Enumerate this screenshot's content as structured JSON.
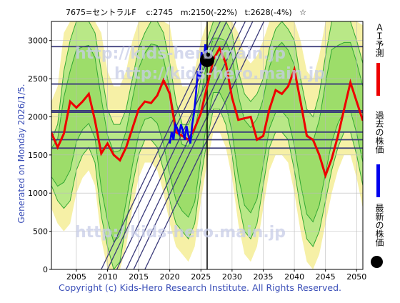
{
  "header": {
    "title": "7675=セントラルF    c:2745   m:2150(-22%)   t:2628(-4%)   ☆"
  },
  "side_label": "Generated on Monday 2026/1/5.",
  "footer": "Copyright (c) Kids-Hero Research Institute. All Rights Reserved.",
  "watermarks": [
    "http://kids-hero.main.jp",
    "http://kids-hero.main.jp",
    "http://kids-hero.main.jp"
  ],
  "legend": [
    {
      "label": "ＡＩ予測",
      "color": "#ee0000",
      "kind": "line"
    },
    {
      "label": "過去の株価",
      "color": "#0000ee",
      "kind": "line"
    },
    {
      "label": "最新の株価",
      "color": "#000000",
      "kind": "dot"
    }
  ],
  "chart_data": {
    "type": "line",
    "xlim": [
      2001,
      2051
    ],
    "ylim": [
      0,
      3250
    ],
    "xticks": [
      2005,
      2010,
      2015,
      2020,
      2025,
      2030,
      2035,
      2040,
      2045,
      2050
    ],
    "yticks": [
      0,
      500,
      1000,
      1500,
      2000,
      2500,
      3000
    ],
    "current_marker": {
      "x": 2026.0,
      "y": 2745
    },
    "current_vline_x": 2026.0,
    "hlines": [
      2920,
      2430,
      2080,
      2060,
      1800,
      1700,
      1590
    ],
    "diagonals": [
      {
        "x0": 2009.0,
        "y0": 0,
        "slope": 170
      },
      {
        "x0": 2010.0,
        "y0": 0,
        "slope": 170
      },
      {
        "x0": 2011.5,
        "y0": 0,
        "slope": 170
      },
      {
        "x0": 2013.0,
        "y0": 0,
        "slope": 170
      },
      {
        "x0": 2014.2,
        "y0": 0,
        "slope": 170
      },
      {
        "x0": 2016.0,
        "y0": 0,
        "slope": 170
      }
    ],
    "series": [
      {
        "name": "ＡＩ予測",
        "color": "#ee0000",
        "x": [
          2001,
          2002,
          2003,
          2004,
          2005,
          2006,
          2007,
          2008,
          2009,
          2010,
          2011,
          2012,
          2013,
          2014,
          2015,
          2016,
          2017,
          2018,
          2019,
          2020,
          2021,
          2022,
          2023,
          2024,
          2025,
          2026,
          2027,
          2028,
          2029,
          2030,
          2031,
          2032,
          2033,
          2034,
          2035,
          2036,
          2037,
          2038,
          2039,
          2040,
          2041,
          2042,
          2043,
          2044,
          2045,
          2046,
          2047,
          2048,
          2049,
          2050,
          2051
        ],
        "y": [
          1790,
          1600,
          1780,
          2200,
          2120,
          2200,
          2300,
          1950,
          1520,
          1650,
          1500,
          1430,
          1600,
          1850,
          2100,
          2200,
          2180,
          2280,
          2480,
          2300,
          1800,
          1750,
          1700,
          1850,
          2050,
          2400,
          2750,
          2900,
          2700,
          2250,
          1960,
          1980,
          2000,
          1700,
          1750,
          2100,
          2350,
          2300,
          2400,
          2620,
          2200,
          1750,
          1700,
          1500,
          1230,
          1450,
          1750,
          2100,
          2450,
          2200,
          1950
        ]
      },
      {
        "name": "過去の株価",
        "color": "#0000ee",
        "x": [
          2020.0,
          2020.3,
          2020.6,
          2020.9,
          2021.2,
          2021.5,
          2021.8,
          2022.1,
          2022.4,
          2022.7,
          2023.0,
          2023.3,
          2023.6,
          2023.9,
          2024.2,
          2024.5,
          2024.8,
          2025.1,
          2025.4,
          2025.7,
          2026.0
        ],
        "y": [
          1650,
          1800,
          1700,
          1900,
          1850,
          1780,
          1900,
          1820,
          1700,
          1880,
          1750,
          1650,
          1900,
          2050,
          2300,
          2600,
          2500,
          2850,
          2700,
          2950,
          2745
        ]
      }
    ],
    "bands_green_upper": [
      1700,
      1900,
      2600,
      3000,
      3250,
      3250,
      3250,
      3100,
      2600,
      2100,
      1900,
      1900,
      2100,
      2500,
      2900,
      3100,
      3250,
      3250,
      3100,
      2700,
      2200,
      1900,
      1900,
      2100,
      2500,
      3000,
      3250,
      3250,
      3250,
      3100,
      2600,
      2300,
      2200,
      2300,
      2500,
      2900,
      3150,
      3250,
      3150,
      3000,
      2500,
      2100,
      2000,
      2300,
      2800,
      3250,
      3250,
      3250,
      3250,
      3000,
      2700
    ],
    "bands_green_lower": [
      1100,
      900,
      800,
      900,
      1300,
      1500,
      1600,
      1400,
      700,
      300,
      0,
      100,
      600,
      1100,
      1500,
      1700,
      1700,
      1600,
      1300,
      900,
      600,
      500,
      400,
      600,
      1200,
      1700,
      2100,
      2100,
      1900,
      1500,
      900,
      500,
      400,
      600,
      1100,
      1600,
      1800,
      1800,
      1700,
      1300,
      800,
      400,
      300,
      500,
      900,
      1300,
      1600,
      1800,
      1800,
      1500,
      1100
    ]
  }
}
